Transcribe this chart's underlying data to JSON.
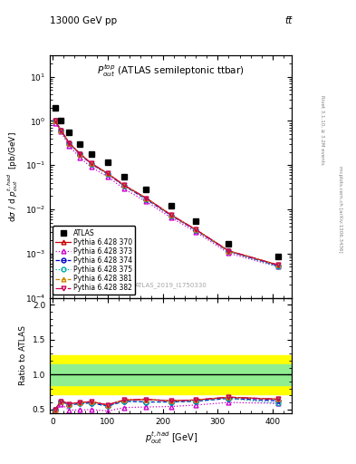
{
  "title_top": "13000 GeV pp",
  "title_top_right": "tt̅",
  "plot_title": "$P_{out}^{top}$ (ATLAS semileptonic ttbar)",
  "xlabel": "$p_{out}^{t,had}$ [GeV]",
  "ylabel_main": "dσ / d $p_{out}^{t,had}$  [pb/GeV]",
  "ylabel_ratio": "Ratio to ATLAS",
  "watermark": "ATLAS_2019_I1750330",
  "right_label": "Rivet 3.1.10, ≥ 3.2M events",
  "right_label2": "mcplots.cern.ch [arXiv:1306.3436]",
  "atlas_x": [
    5,
    15,
    30,
    50,
    70,
    100,
    130,
    170,
    215,
    260,
    320,
    410
  ],
  "atlas_y": [
    2.0,
    1.0,
    0.55,
    0.3,
    0.18,
    0.115,
    0.055,
    0.028,
    0.012,
    0.0055,
    0.0017,
    0.00085
  ],
  "mc_x": [
    5,
    15,
    30,
    50,
    70,
    100,
    130,
    170,
    215,
    260,
    320,
    410
  ],
  "py370_y": [
    1.0,
    0.62,
    0.32,
    0.18,
    0.11,
    0.065,
    0.035,
    0.018,
    0.0075,
    0.0035,
    0.00115,
    0.00055
  ],
  "py373_y": [
    0.9,
    0.58,
    0.27,
    0.148,
    0.09,
    0.055,
    0.029,
    0.015,
    0.0065,
    0.0031,
    0.00102,
    0.0005
  ],
  "py374_y": [
    1.0,
    0.62,
    0.31,
    0.175,
    0.107,
    0.063,
    0.034,
    0.017,
    0.0073,
    0.0034,
    0.00112,
    0.00053
  ],
  "py375_y": [
    1.0,
    0.62,
    0.31,
    0.175,
    0.107,
    0.063,
    0.034,
    0.017,
    0.0073,
    0.0034,
    0.00112,
    0.0005
  ],
  "py381_y": [
    1.0,
    0.62,
    0.32,
    0.18,
    0.11,
    0.065,
    0.035,
    0.018,
    0.0075,
    0.0035,
    0.00115,
    0.00055
  ],
  "py382_y": [
    1.0,
    0.62,
    0.32,
    0.18,
    0.11,
    0.065,
    0.035,
    0.018,
    0.0075,
    0.0035,
    0.00115,
    0.00055
  ],
  "ratio_py370": [
    0.5,
    0.62,
    0.582,
    0.6,
    0.611,
    0.565,
    0.636,
    0.643,
    0.625,
    0.636,
    0.676,
    0.647
  ],
  "ratio_py373": [
    0.45,
    0.58,
    0.491,
    0.493,
    0.5,
    0.478,
    0.527,
    0.536,
    0.542,
    0.564,
    0.6,
    0.588
  ],
  "ratio_py374": [
    0.5,
    0.62,
    0.564,
    0.583,
    0.594,
    0.548,
    0.618,
    0.607,
    0.608,
    0.618,
    0.659,
    0.624
  ],
  "ratio_py375": [
    0.5,
    0.62,
    0.564,
    0.583,
    0.594,
    0.548,
    0.618,
    0.607,
    0.608,
    0.618,
    0.659,
    0.588
  ],
  "ratio_py381": [
    0.5,
    0.62,
    0.582,
    0.6,
    0.611,
    0.565,
    0.636,
    0.643,
    0.625,
    0.636,
    0.676,
    0.647
  ],
  "ratio_py382": [
    0.5,
    0.62,
    0.582,
    0.6,
    0.611,
    0.565,
    0.636,
    0.643,
    0.625,
    0.636,
    0.676,
    0.647
  ],
  "green_band_lo": 0.85,
  "green_band_hi": 1.15,
  "yellow_band_lo": 0.72,
  "yellow_band_hi": 1.28,
  "colors": {
    "py370": "#cc0000",
    "py373": "#cc00cc",
    "py374": "#0000cc",
    "py375": "#00aaaa",
    "py381": "#cc8800",
    "py382": "#cc0055"
  },
  "linestyles": {
    "py370": "-",
    "py373": ":",
    "py374": "--",
    "py375": ":",
    "py381": "--",
    "py382": "-."
  },
  "markers": {
    "py370": "^",
    "py373": "^",
    "py374": "o",
    "py375": "o",
    "py381": "^",
    "py382": "v"
  },
  "ylim_main": [
    0.0001,
    30
  ],
  "ylim_ratio": [
    0.45,
    2.1
  ],
  "xlim": [
    -5,
    435
  ]
}
